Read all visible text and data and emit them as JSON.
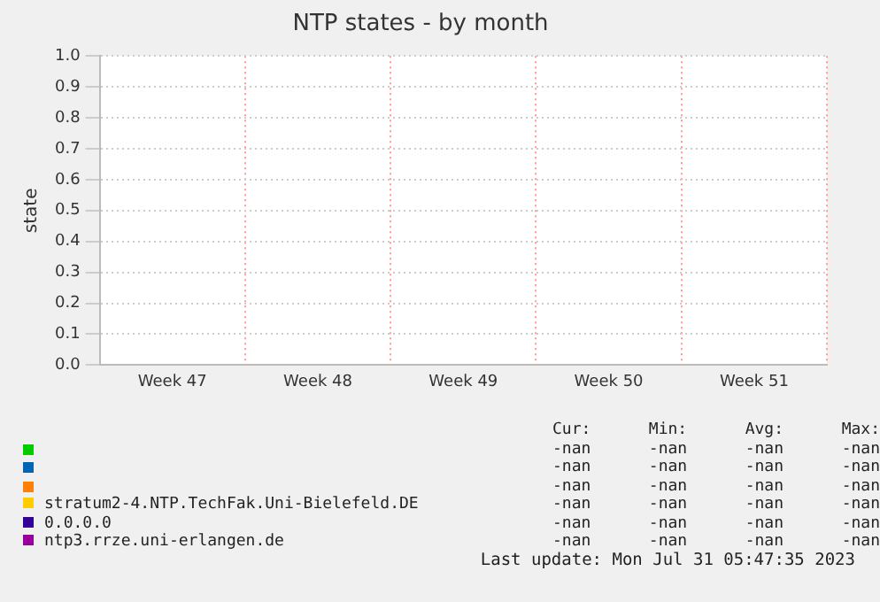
{
  "chart_data": {
    "type": "line",
    "title": "NTP states - by month",
    "ylabel": "state",
    "categories": [
      "Week 47",
      "Week 48",
      "Week 49",
      "Week 50",
      "Week 51"
    ],
    "series": [
      {
        "color": "#00cc00",
        "values": [
          null,
          null,
          null,
          null,
          null
        ]
      },
      {
        "color": "#0066b3",
        "values": [
          null,
          null,
          null,
          null,
          null
        ]
      },
      {
        "color": "#ff8000",
        "values": [
          null,
          null,
          null,
          null,
          null
        ]
      },
      {
        "name": "stratum2-4.NTP.TechFak.Uni-Bielefeld.DE",
        "color": "#ffcc00",
        "values": [
          null,
          null,
          null,
          null,
          null
        ]
      },
      {
        "name": "0.0.0.0",
        "color": "#330099",
        "values": [
          null,
          null,
          null,
          null,
          null
        ]
      },
      {
        "name": "ntp3.rrze.uni-erlangen.de",
        "color": "#990099",
        "values": [
          null,
          null,
          null,
          null,
          null
        ]
      }
    ],
    "ylim": [
      0,
      1
    ],
    "yticks": [
      {
        "value": 0,
        "label": "0.0"
      },
      0.1,
      0.2,
      0.3,
      0.4,
      0.5,
      0.6,
      0.7,
      0.8,
      0.9,
      {
        "value": 1,
        "label": "1.0"
      }
    ],
    "grid": true,
    "legend": "bottom",
    "annotations": [
      "Cur:",
      "Min:",
      "Avg:",
      "Max:",
      "-nan",
      "-nan",
      "-nan",
      "-nan",
      "-nan",
      "-nan",
      "-nan",
      "-nan",
      "-nan",
      "-nan",
      "-nan",
      "-nan",
      "-nan",
      "-nan",
      "-nan",
      "-nan",
      "-nan",
      "-nan",
      "-nan",
      "-nan",
      "-nan",
      "-nan",
      "-nan",
      "-nan",
      "Last update: Mon Jul 31 05:47:35 2023"
    ]
  }
}
